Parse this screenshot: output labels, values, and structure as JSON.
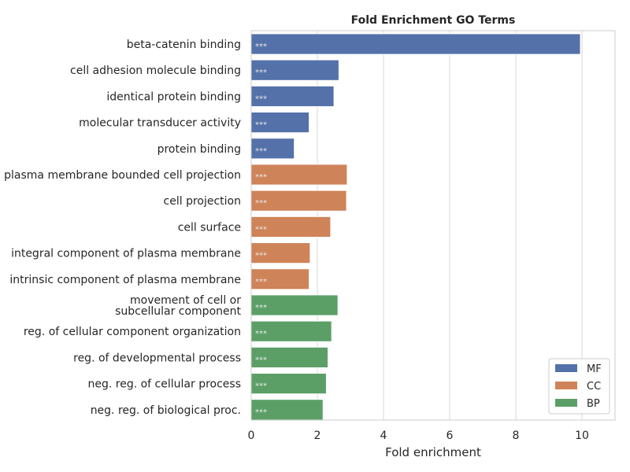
{
  "chart_data": {
    "type": "bar",
    "orientation": "horizontal",
    "title": "Fold Enrichment GO Terms",
    "xlabel": "Fold enrichment",
    "ylabel": "",
    "xlim": [
      0,
      11
    ],
    "xticks": [
      0,
      2,
      4,
      6,
      8,
      10
    ],
    "grid": true,
    "legend_position": "bottom-right",
    "categories": [
      "beta-catenin binding",
      "cell adhesion molecule binding",
      "identical protein binding",
      "molecular transducer activity",
      "protein binding",
      "plasma membrane bounded cell projection",
      "cell projection",
      "cell surface",
      "integral component of plasma membrane",
      "intrinsic component of plasma membrane",
      "movement of cell or\nsubcellular component",
      "reg. of cellular component organization",
      "reg. of developmental process",
      "neg. reg. of cellular process",
      "neg. reg. of biological proc."
    ],
    "values": [
      9.95,
      2.65,
      2.5,
      1.75,
      1.3,
      2.9,
      2.88,
      2.4,
      1.78,
      1.75,
      2.62,
      2.43,
      2.32,
      2.27,
      2.17
    ],
    "groups": [
      "MF",
      "MF",
      "MF",
      "MF",
      "MF",
      "CC",
      "CC",
      "CC",
      "CC",
      "CC",
      "BP",
      "BP",
      "BP",
      "BP",
      "BP"
    ],
    "annotations": [
      "***",
      "***",
      "***",
      "***",
      "***",
      "***",
      "***",
      "***",
      "***",
      "***",
      "***",
      "***",
      "***",
      "***",
      "***"
    ],
    "legend": [
      {
        "name": "MF",
        "color": "#5471a9"
      },
      {
        "name": "CC",
        "color": "#cf8359"
      },
      {
        "name": "BP",
        "color": "#5b9f67"
      }
    ]
  }
}
